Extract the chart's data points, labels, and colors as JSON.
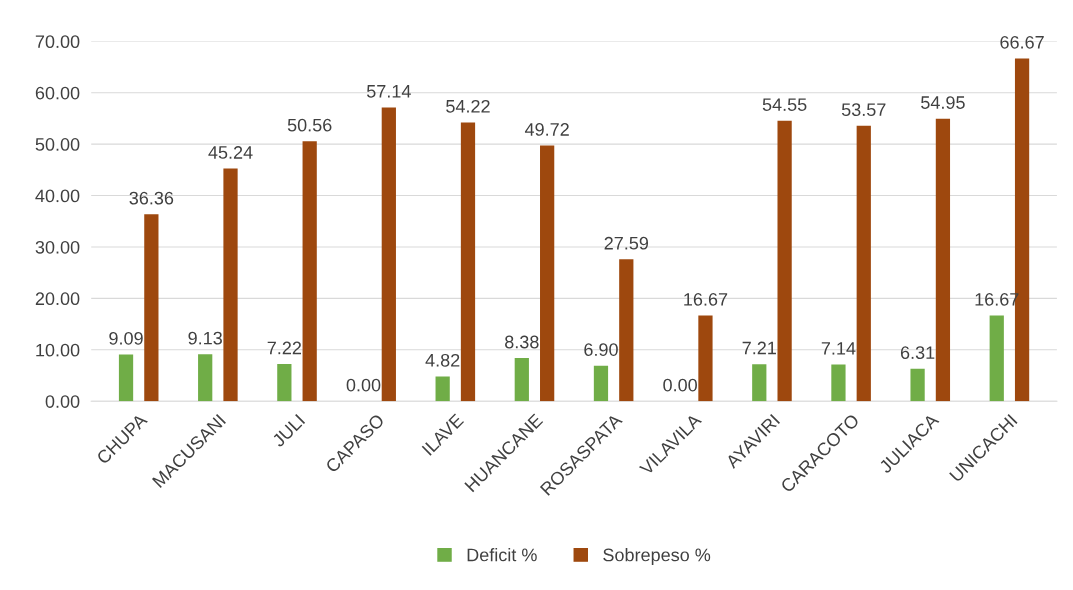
{
  "chart_data": {
    "type": "bar",
    "categories": [
      "CHUPA",
      "MACUSANI",
      "JULI",
      "CAPASO",
      "ILAVE",
      "HUANCANE",
      "ROSASPATA",
      "VILAVILA",
      "AYAVIRI",
      "CARACOTO",
      "JULIACA",
      "UNICACHI"
    ],
    "series": [
      {
        "name": "Deficit %",
        "color": "#70ad47",
        "values": [
          9.09,
          9.13,
          7.22,
          0.0,
          4.82,
          8.38,
          6.9,
          0.0,
          7.21,
          7.14,
          6.31,
          16.67
        ],
        "value_labels": [
          "9.09",
          "9.13",
          "7.22",
          "0.00",
          "4.82",
          "8.38",
          "6.90",
          "0.00",
          "7.21",
          "7.14",
          "6.31",
          "16.67"
        ]
      },
      {
        "name": "Sobrepeso %",
        "color": "#9e480e",
        "values": [
          36.36,
          45.24,
          50.56,
          57.14,
          54.22,
          49.72,
          27.59,
          16.67,
          54.55,
          53.57,
          54.95,
          66.67
        ],
        "value_labels": [
          "36.36",
          "45.24",
          "50.56",
          "57.14",
          "54.22",
          "49.72",
          "27.59",
          "16.67",
          "54.55",
          "53.57",
          "54.95",
          "66.67"
        ]
      }
    ],
    "ylim": [
      0,
      70
    ],
    "yticks": [
      {
        "value": 0,
        "label": "0.00"
      },
      {
        "value": 10,
        "label": "10.00"
      },
      {
        "value": 20,
        "label": "20.00"
      },
      {
        "value": 30,
        "label": "30.00"
      },
      {
        "value": 40,
        "label": "40.00"
      },
      {
        "value": 50,
        "label": "50.00"
      },
      {
        "value": 60,
        "label": "60.00"
      },
      {
        "value": 70,
        "label": "70.00"
      }
    ],
    "grid": "y",
    "legend": "bottom"
  }
}
